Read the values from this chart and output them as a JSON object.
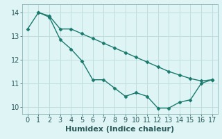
{
  "line1_x": [
    0,
    1,
    2,
    3,
    4,
    5,
    6,
    7,
    8,
    9,
    10,
    11,
    12,
    13,
    14,
    15,
    16,
    17
  ],
  "line1_y": [
    13.3,
    14.0,
    13.8,
    12.85,
    12.45,
    11.95,
    11.15,
    11.15,
    10.8,
    10.45,
    10.6,
    10.45,
    9.95,
    9.95,
    10.2,
    10.3,
    11.0,
    11.15
  ],
  "line2_x": [
    1,
    2,
    3,
    4,
    5,
    6,
    7,
    8,
    9,
    10,
    11,
    12,
    13,
    14,
    15,
    16,
    17
  ],
  "line2_y": [
    14.0,
    13.85,
    13.3,
    13.3,
    13.1,
    12.9,
    12.7,
    12.5,
    12.3,
    12.1,
    11.9,
    11.7,
    11.5,
    11.35,
    11.2,
    11.1,
    11.15
  ],
  "line_color": "#1a7a6e",
  "bg_color": "#dff4f4",
  "grid_color": "#c0dede",
  "grid_color_minor": "#d8eeee",
  "xlabel": "Humidex (Indice chaleur)",
  "xlim": [
    -0.5,
    17.5
  ],
  "ylim": [
    9.7,
    14.35
  ],
  "xticks": [
    0,
    1,
    2,
    3,
    4,
    5,
    6,
    7,
    8,
    9,
    10,
    11,
    12,
    13,
    14,
    15,
    16,
    17
  ],
  "yticks": [
    10,
    11,
    12,
    13,
    14
  ],
  "marker": "D",
  "markersize": 2.5,
  "linewidth": 1.0,
  "xlabel_fontsize": 8,
  "tick_fontsize": 7,
  "tick_color": "#2a5a5a"
}
